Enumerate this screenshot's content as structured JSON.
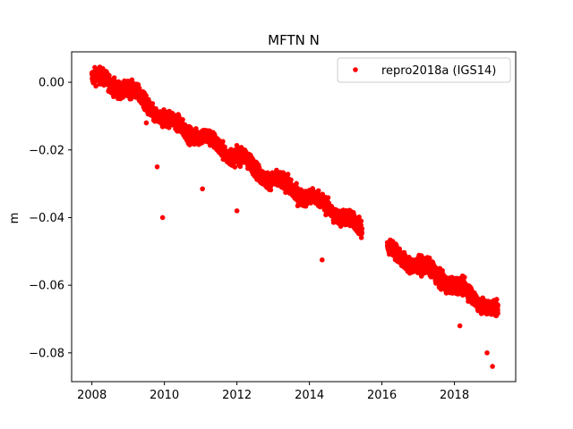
{
  "chart_data": {
    "type": "scatter",
    "title": "MFTN N",
    "xlabel": "",
    "ylabel": "m",
    "xlim": [
      2007.44,
      2019.69
    ],
    "ylim": [
      -0.0885,
      0.009
    ],
    "x_ticks": [
      2008,
      2010,
      2012,
      2014,
      2016,
      2018
    ],
    "x_tick_labels": [
      "2008",
      "2010",
      "2012",
      "2014",
      "2016",
      "2018"
    ],
    "y_ticks": [
      0.0,
      -0.02,
      -0.04,
      -0.06,
      -0.08
    ],
    "y_tick_labels": [
      "0.00",
      "−0.02",
      "−0.04",
      "−0.06",
      "−0.08"
    ],
    "grid": false,
    "legend_position": "top-right",
    "series": [
      {
        "name": "repro2018a (IGS14)",
        "color": "#ff0000",
        "marker": "circle",
        "data_gap": [
          2015.45,
          2016.15
        ],
        "trend_points": [
          {
            "x": 2008.0,
            "y": 0.0015
          },
          {
            "x": 2009.0,
            "y": -0.002
          },
          {
            "x": 2010.0,
            "y": -0.011
          },
          {
            "x": 2011.0,
            "y": -0.016
          },
          {
            "x": 2012.0,
            "y": -0.022
          },
          {
            "x": 2013.0,
            "y": -0.029
          },
          {
            "x": 2014.0,
            "y": -0.034
          },
          {
            "x": 2015.0,
            "y": -0.04
          },
          {
            "x": 2015.4,
            "y": -0.044
          },
          {
            "x": 2016.2,
            "y": -0.05
          },
          {
            "x": 2017.0,
            "y": -0.054
          },
          {
            "x": 2018.0,
            "y": -0.06
          },
          {
            "x": 2019.2,
            "y": -0.068
          }
        ],
        "outliers": [
          {
            "x": 2009.5,
            "y": -0.012
          },
          {
            "x": 2009.8,
            "y": -0.025
          },
          {
            "x": 2009.95,
            "y": -0.04
          },
          {
            "x": 2011.05,
            "y": -0.0315
          },
          {
            "x": 2012.0,
            "y": -0.038
          },
          {
            "x": 2014.35,
            "y": -0.0525
          },
          {
            "x": 2018.15,
            "y": -0.072
          },
          {
            "x": 2018.9,
            "y": -0.08
          },
          {
            "x": 2019.05,
            "y": -0.084
          }
        ]
      }
    ]
  }
}
